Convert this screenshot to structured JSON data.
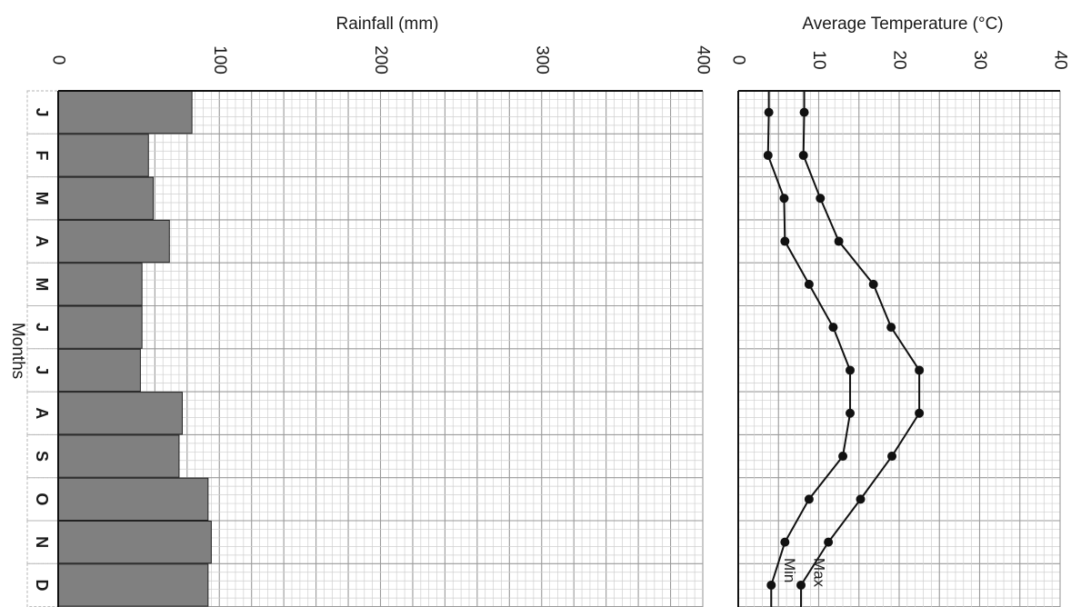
{
  "chart_data": [
    {
      "type": "bar",
      "title": "Rainfall (mm)",
      "ylabel": "Months",
      "categories": [
        "J",
        "F",
        "M",
        "A",
        "M",
        "J",
        "J",
        "A",
        "S",
        "O",
        "N",
        "D"
      ],
      "values": [
        83,
        56,
        59,
        69,
        52,
        52,
        51,
        77,
        75,
        93,
        95,
        93
      ],
      "xlim": [
        0,
        400
      ],
      "ticks": [
        "0",
        "100",
        "200",
        "300",
        "400"
      ],
      "orientation": "rotated 90° clockwise",
      "bar_color": "#808080",
      "grid": true
    },
    {
      "type": "line",
      "title": "Average Temperature (°C)",
      "categories": [
        "J",
        "F",
        "M",
        "A",
        "M",
        "J",
        "J",
        "A",
        "S",
        "O",
        "N",
        "D"
      ],
      "ylim": [
        0,
        40
      ],
      "ticks": [
        "0",
        "10",
        "20",
        "30",
        "40"
      ],
      "series": [
        {
          "name": "Max",
          "values": [
            8.2,
            8.1,
            10.2,
            12.5,
            16.8,
            19.0,
            22.5,
            22.5,
            19.1,
            15.2,
            11.2,
            7.8
          ]
        },
        {
          "name": "Min",
          "values": [
            3.8,
            3.7,
            5.7,
            5.8,
            8.8,
            11.8,
            13.9,
            13.9,
            13.0,
            8.8,
            5.8,
            4.1
          ]
        }
      ],
      "grid": true
    }
  ]
}
